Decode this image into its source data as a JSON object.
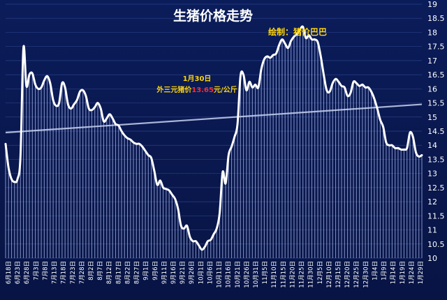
{
  "chart_data": {
    "type": "line",
    "title": "生猪价格走势",
    "credit": "绘制：猪价巴巴",
    "annotation": {
      "date": "1月30日",
      "prefix": "外三元猪价",
      "value": "13.65",
      "suffix": "元/公斤"
    },
    "ylim": [
      10,
      19
    ],
    "yticks": [
      10,
      10.5,
      11,
      11.5,
      12,
      12.5,
      13,
      13.5,
      14,
      14.5,
      15,
      15.5,
      16,
      16.5,
      17,
      17.5,
      18,
      18.5,
      19
    ],
    "x_tick_labels": [
      "6月18日",
      "6月23日",
      "6月28日",
      "7月3日",
      "7月8日",
      "7月13日",
      "7月18日",
      "7月23日",
      "7月28日",
      "8月2日",
      "8月7日",
      "8月12日",
      "8月17日",
      "8月22日",
      "8月27日",
      "9月1日",
      "9月6日",
      "9月11日",
      "9月16日",
      "9月21日",
      "9月26日",
      "10月1日",
      "10月6日",
      "10月11日",
      "10月16日",
      "10月21日",
      "10月26日",
      "10月31日",
      "11月5日",
      "11月10日",
      "11月15日",
      "11月20日",
      "11月25日",
      "11月30日",
      "12月5日",
      "12月10日",
      "12月15日",
      "12月20日",
      "12月25日",
      "12月30日",
      "1月4日",
      "1月9日",
      "1月14日",
      "1月19日",
      "1月24日",
      "1月29日"
    ],
    "series": [
      {
        "values": [
          14.05,
          13.2,
          12.8,
          12.7,
          12.8,
          13.6,
          17.45,
          16.1,
          16.5,
          16.55,
          16.15,
          16,
          16.05,
          16.3,
          16.45,
          16.2,
          15.6,
          15.4,
          15.5,
          16.2,
          16.05,
          15.45,
          15.3,
          15.45,
          15.6,
          15.9,
          15.95,
          15.75,
          15.3,
          15.25,
          15.35,
          15.5,
          15.3,
          14.85,
          14.95,
          15.1,
          14.95,
          14.75,
          14.7,
          14.5,
          14.35,
          14.25,
          14.2,
          14.1,
          14.05,
          14.05,
          13.95,
          13.8,
          13.65,
          13.55,
          13.1,
          12.6,
          12.75,
          12.5,
          12.45,
          12.4,
          12.25,
          12.1,
          11.75,
          11.15,
          11.05,
          11.15,
          10.75,
          10.6,
          10.6,
          10.45,
          10.3,
          10.4,
          10.6,
          10.65,
          10.85,
          11.05,
          11.6,
          13.05,
          12.65,
          13.65,
          13.95,
          14.3,
          14.75,
          16.45,
          16.5,
          15.95,
          16.25,
          16.05,
          16.15,
          16.05,
          16.7,
          17.05,
          17.15,
          17.1,
          17.2,
          17.25,
          17.55,
          17.75,
          17.6,
          17.45,
          17.7,
          17.85,
          17.95,
          18.1,
          18.2,
          17.8,
          17.9,
          17.75,
          17.75,
          17.65,
          17.15,
          16.5,
          15.95,
          15.9,
          16.2,
          16.35,
          16.25,
          16.1,
          16.05,
          15.75,
          15.85,
          16.25,
          16.2,
          16.1,
          16.15,
          16.05,
          16.05,
          15.9,
          15.65,
          15.3,
          14.9,
          14.65,
          14.1,
          14,
          14,
          13.9,
          13.9,
          13.85,
          13.85,
          13.9,
          14.45,
          14.3,
          13.75,
          13.6,
          13.65
        ]
      },
      {
        "name": "",
        "type": "trendline",
        "values": [
          14.45,
          15.45
        ]
      }
    ],
    "grid": true,
    "legend": "none"
  }
}
